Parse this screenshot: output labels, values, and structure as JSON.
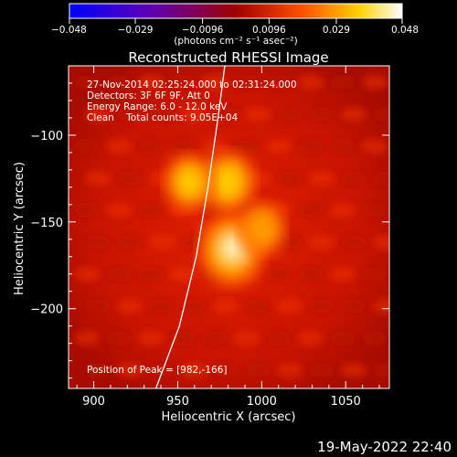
{
  "chart_data": {
    "type": "heatmap",
    "title": "Reconstructed RHESSI Image",
    "xlabel": "Heliocentric X (arcsec)",
    "ylabel": "Heliocentric Y (arcsec)",
    "xlim": [
      885,
      1076
    ],
    "ylim": [
      -246,
      -60
    ],
    "xticks": [
      900,
      950,
      1000,
      1050
    ],
    "xtick_labels": [
      "900",
      "950",
      "1000",
      "1050"
    ],
    "yticks": [
      -100,
      -150,
      -200
    ],
    "ytick_labels": [
      "−100",
      "−150",
      "−200"
    ],
    "colorbar": {
      "range": [
        -0.048,
        0.048
      ],
      "ticks": [
        -0.048,
        -0.029,
        -0.0096,
        0.0096,
        0.029,
        0.048
      ],
      "tick_labels": [
        "−0.048",
        "−0.029",
        "−0.0096",
        "0.0096",
        "0.029",
        "0.048"
      ],
      "unit_label": "(photons cm⁻² s⁻¹ asec⁻²)"
    },
    "colormap": [
      "#0000ff",
      "#5000a0",
      "#a00000",
      "#ff4000",
      "#ffd000",
      "#ffffff"
    ],
    "sources": [
      {
        "x": 982,
        "y": -166,
        "value": 0.048
      },
      {
        "x": 980,
        "y": -127,
        "value": 0.03
      },
      {
        "x": 957,
        "y": -127,
        "value": 0.022
      },
      {
        "x": 1000,
        "y": -154,
        "value": 0.017
      }
    ],
    "limb_curve": [
      [
        937,
        -246
      ],
      [
        951,
        -210
      ],
      [
        961,
        -170
      ],
      [
        968,
        -130
      ],
      [
        974,
        -90
      ],
      [
        978,
        -60
      ]
    ],
    "info_lines": [
      "27-Nov-2014 02:25:24.000 to 02:31:24.000",
      "Detectors: 3F 6F 9F, Att 0",
      "Energy Range: 6.0 - 12.0 keV",
      "Clean    Total counts: 9.05E+04"
    ],
    "peak_text": "Position of Peak = [982,-166]",
    "timestamp": "19-May-2022 22:40"
  }
}
